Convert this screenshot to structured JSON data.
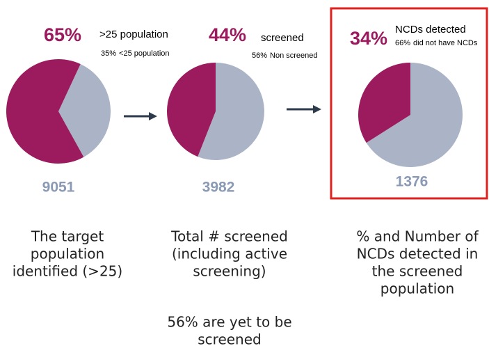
{
  "chart_data": [
    {
      "type": "pie",
      "categories": [
        ">25 population",
        "<25 population"
      ],
      "values": [
        65,
        35
      ],
      "value_labels": [
        "65%",
        "35%"
      ],
      "colors": [
        "#9c1a5e",
        "#aab4c6"
      ],
      "count": 9051,
      "caption": [
        "The target",
        "population",
        "identified (>25)"
      ]
    },
    {
      "type": "pie",
      "categories": [
        "screened",
        "Non screened"
      ],
      "values": [
        44,
        56
      ],
      "value_labels": [
        "44%",
        "56%"
      ],
      "colors": [
        "#9c1a5e",
        "#aab4c6"
      ],
      "count": 3982,
      "caption": [
        "Total # screened",
        "(including active",
        "screening)"
      ],
      "note": [
        "56% are yet to be",
        "screened"
      ]
    },
    {
      "type": "pie",
      "categories": [
        "NCDs detected",
        "did not have NCDs"
      ],
      "values": [
        34,
        66
      ],
      "value_labels": [
        "34%",
        "66%"
      ],
      "colors": [
        "#9c1a5e",
        "#aab4c6"
      ],
      "count": 1376,
      "caption": [
        "% and Number of",
        "NCDs detected in",
        "the screened",
        "population"
      ]
    }
  ]
}
